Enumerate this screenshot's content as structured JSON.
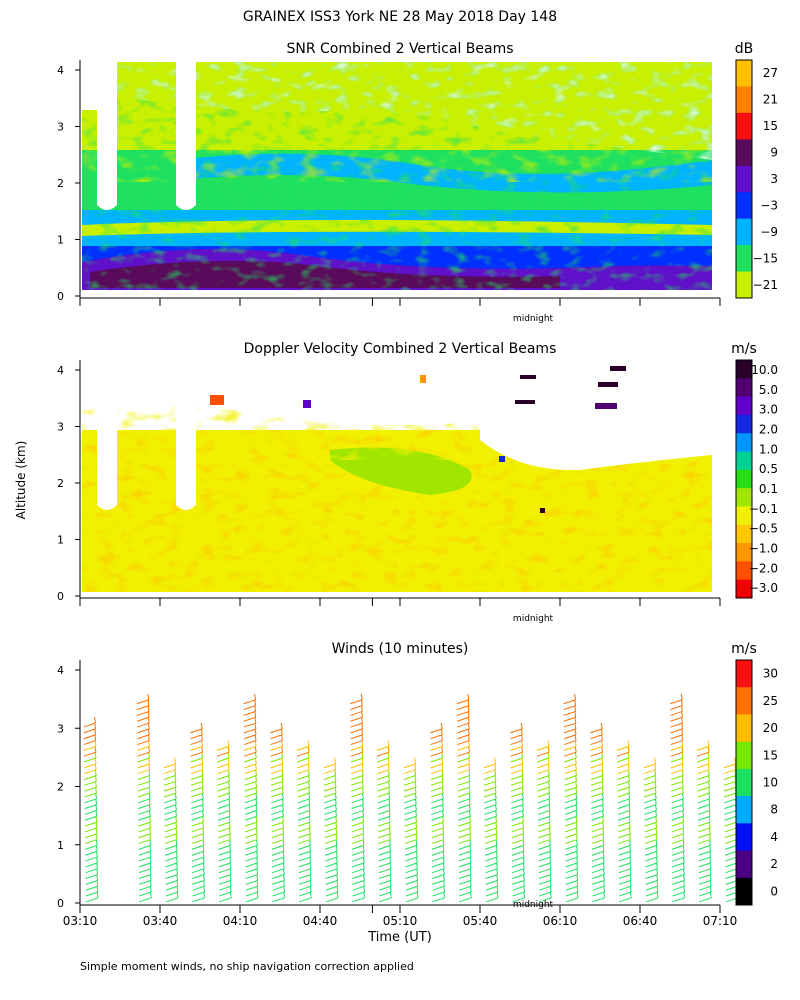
{
  "figure": {
    "title": "GRAINEX ISS3 York NE  28 May 2018 Day 148",
    "y_axis_label": "Altitude (km)",
    "x_axis_label": "Time (UT)",
    "footnote": "Simple moment winds, no ship navigation correction applied",
    "midnight_label": "midnight"
  },
  "chart_data": [
    {
      "type": "heatmap",
      "title": "SNR Combined 2 Vertical Beams",
      "ylabel": "",
      "ylim": [
        0,
        4
      ],
      "yticks": [
        "0",
        "1",
        "2",
        "3",
        "4"
      ],
      "colorbar_unit": "dB",
      "colorbar_ticks": [
        "27",
        "21",
        "15",
        "9",
        "3",
        "−3",
        "−9",
        "−15",
        "−21"
      ],
      "colorbar_colors": [
        "#ffc000",
        "#ff8000",
        "#ff1010",
        "#5a0a5a",
        "#6010c8",
        "#0030ff",
        "#00b4ff",
        "#20e060",
        "#c8f000"
      ],
      "layers": [
        {
          "value": "-3 to 9",
          "color": "#6010c8",
          "alt_range_km": [
            0.15,
            0.6
          ]
        },
        {
          "value": "-9",
          "color": "#00b4ff",
          "alt_range_km": [
            0.6,
            1.5
          ]
        },
        {
          "value": "-15",
          "color": "#20e060",
          "alt_range_km": [
            1.5,
            2.4
          ]
        },
        {
          "value": "-21",
          "color": "#c8f000",
          "alt_range_km": [
            2.4,
            3.9
          ]
        }
      ],
      "grid": false
    },
    {
      "type": "heatmap",
      "title": "Doppler Velocity Combined 2 Vertical Beams",
      "ylim": [
        0,
        4
      ],
      "yticks": [
        "0",
        "1",
        "2",
        "3",
        "4"
      ],
      "colorbar_unit": "m/s",
      "colorbar_ticks": [
        "10.0",
        "5.0",
        "3.0",
        "2.0",
        "1.0",
        "0.5",
        "0.1",
        "−0.1",
        "−0.5",
        "−1.0",
        "−2.0",
        "−3.0"
      ],
      "colorbar_colors": [
        "#280028",
        "#500070",
        "#6000c8",
        "#1428e0",
        "#0096ff",
        "#00d296",
        "#28dc14",
        "#a0e600",
        "#f0f000",
        "#ffc800",
        "#ff9600",
        "#ff5000",
        "#f00000"
      ],
      "dominant_value": "-0.1 to -1.0",
      "grid": false
    },
    {
      "type": "scatter",
      "title": "Winds (10 minutes)",
      "ylim": [
        0,
        4
      ],
      "yticks": [
        "0",
        "1",
        "2",
        "3",
        "4"
      ],
      "x_tick_labels": [
        "03:10",
        "03:40",
        "04:10",
        "04:40",
        "05:10",
        "05:40",
        "06:10",
        "06:40",
        "07:10"
      ],
      "colorbar_unit": "m/s",
      "colorbar_ticks": [
        "30",
        "25",
        "20",
        "15",
        "10",
        "8",
        "4",
        "2",
        "0"
      ],
      "colorbar_colors": [
        "#ff1010",
        "#ff7000",
        "#ffbe00",
        "#78e600",
        "#1ee060",
        "#00aaff",
        "#0010ff",
        "#4b0082",
        "#000000"
      ],
      "columns_minutes_after_0310": [
        0,
        20,
        30,
        40,
        50,
        60,
        70,
        80,
        90,
        100,
        110,
        120,
        130,
        140,
        150,
        160,
        170,
        180,
        190,
        200,
        210,
        220,
        230,
        240
      ],
      "typical_speed_ms": [
        12,
        18,
        25
      ],
      "grid": false
    }
  ]
}
